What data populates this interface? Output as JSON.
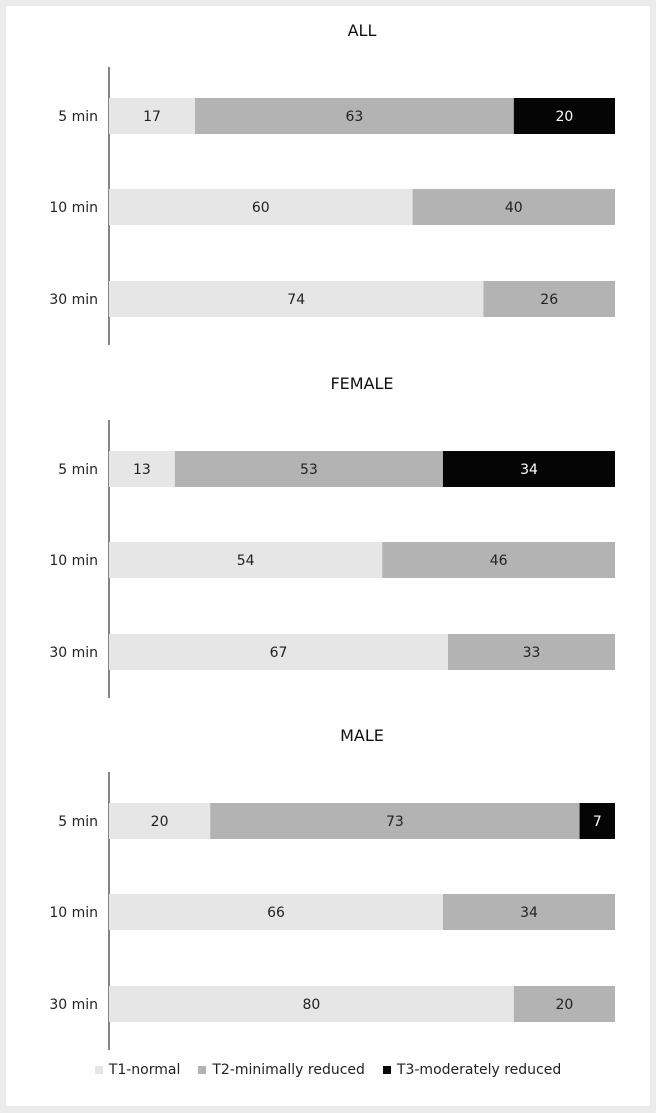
{
  "chart_data": [
    {
      "type": "bar",
      "orientation": "horizontal",
      "stacked": true,
      "title": "ALL",
      "categories": [
        "5 min",
        "10 min",
        "30 min"
      ],
      "series": [
        {
          "name": "T1-normal",
          "values": [
            17,
            60,
            74
          ]
        },
        {
          "name": "T2-minimally reduced",
          "values": [
            63,
            40,
            26
          ]
        },
        {
          "name": "T3-moderately reduced",
          "values": [
            20,
            0,
            0
          ]
        }
      ],
      "xlim": [
        0,
        100
      ]
    },
    {
      "type": "bar",
      "orientation": "horizontal",
      "stacked": true,
      "title": "FEMALE",
      "categories": [
        "5 min",
        "10 min",
        "30 min"
      ],
      "series": [
        {
          "name": "T1-normal",
          "values": [
            13,
            54,
            67
          ]
        },
        {
          "name": "T2-minimally reduced",
          "values": [
            53,
            46,
            33
          ]
        },
        {
          "name": "T3-moderately reduced",
          "values": [
            34,
            0,
            0
          ]
        }
      ],
      "xlim": [
        0,
        100
      ]
    },
    {
      "type": "bar",
      "orientation": "horizontal",
      "stacked": true,
      "title": "MALE",
      "categories": [
        "5 min",
        "10 min",
        "30 min"
      ],
      "series": [
        {
          "name": "T1-normal",
          "values": [
            20,
            66,
            80
          ]
        },
        {
          "name": "T2-minimally reduced",
          "values": [
            73,
            34,
            20
          ]
        },
        {
          "name": "T3-moderately reduced",
          "values": [
            7,
            0,
            0
          ]
        }
      ],
      "xlim": [
        0,
        100
      ]
    }
  ],
  "colors": {
    "T1-normal": "#e6e6e6",
    "T2-minimally reduced": "#b3b3b3",
    "T3-moderately reduced": "#050505"
  },
  "legend": {
    "items": [
      "T1-normal",
      "T2-minimally reduced",
      "T3-moderately reduced"
    ],
    "placement": "bottom"
  }
}
